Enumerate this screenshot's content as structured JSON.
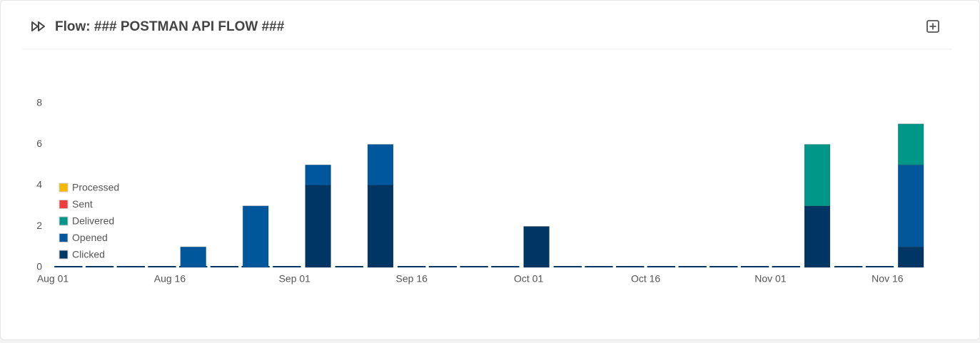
{
  "header": {
    "title": "Flow: ### POSTMAN API FLOW ###"
  },
  "chart_data": {
    "type": "bar",
    "stacked": true,
    "categories": [
      null,
      null,
      null,
      null,
      null,
      null,
      null,
      null,
      null,
      null,
      null,
      null,
      null,
      null,
      null,
      null,
      null,
      null,
      null,
      null,
      null,
      null,
      null,
      null,
      null,
      null,
      null,
      null
    ],
    "series": [
      {
        "name": "Processed",
        "color": "#f6b900",
        "values": [
          0,
          0,
          0,
          0,
          0,
          0,
          0,
          0,
          0,
          0,
          0,
          0,
          0,
          0,
          0,
          0,
          0,
          0,
          0,
          0,
          0,
          0,
          0,
          0,
          0,
          0,
          0,
          0
        ]
      },
      {
        "name": "Sent",
        "color": "#f03c3c",
        "values": [
          0,
          0,
          0,
          0,
          0,
          0,
          0,
          0,
          0,
          0,
          0,
          0,
          0,
          0,
          0,
          0,
          0,
          0,
          0,
          0,
          0,
          0,
          0,
          0,
          0,
          0,
          0,
          0
        ]
      },
      {
        "name": "Delivered",
        "color": "#009688",
        "values": [
          0,
          0,
          0,
          0,
          0,
          0,
          0,
          0,
          0,
          0,
          0,
          0,
          0,
          0,
          0,
          0,
          0,
          0,
          0,
          0,
          0,
          0,
          0,
          0,
          3,
          0,
          0,
          2
        ]
      },
      {
        "name": "Opened",
        "color": "#01579b",
        "values": [
          0,
          0,
          0,
          0,
          1,
          0,
          3,
          0,
          1,
          0,
          2,
          0,
          0,
          0,
          0,
          0,
          0,
          0,
          0,
          0,
          0,
          0,
          0,
          0,
          0,
          0,
          0,
          4
        ]
      },
      {
        "name": "Clicked",
        "color": "#003663",
        "values": [
          0,
          0,
          0,
          0,
          0,
          0,
          0,
          0,
          4,
          0,
          4,
          0,
          0,
          0,
          0,
          2,
          0,
          0,
          0,
          0,
          0,
          0,
          0,
          0,
          3,
          0,
          0,
          1
        ]
      }
    ],
    "ylim": [
      0,
      8
    ],
    "yticks": [
      0,
      2,
      4,
      6,
      8
    ],
    "xlim": [
      0,
      28
    ],
    "xticks": [
      {
        "value": 0,
        "label": "Aug 01"
      },
      {
        "value": 3.75,
        "label": "Aug 16"
      },
      {
        "value": 7.75,
        "label": "Sep 01"
      },
      {
        "value": 11.5,
        "label": "Sep 16"
      },
      {
        "value": 15.25,
        "label": "Oct 01"
      },
      {
        "value": 19,
        "label": "Oct 16"
      },
      {
        "value": 23,
        "label": "Nov 01"
      },
      {
        "value": 26.75,
        "label": "Nov 16"
      }
    ],
    "grid": false,
    "legend": "left"
  }
}
